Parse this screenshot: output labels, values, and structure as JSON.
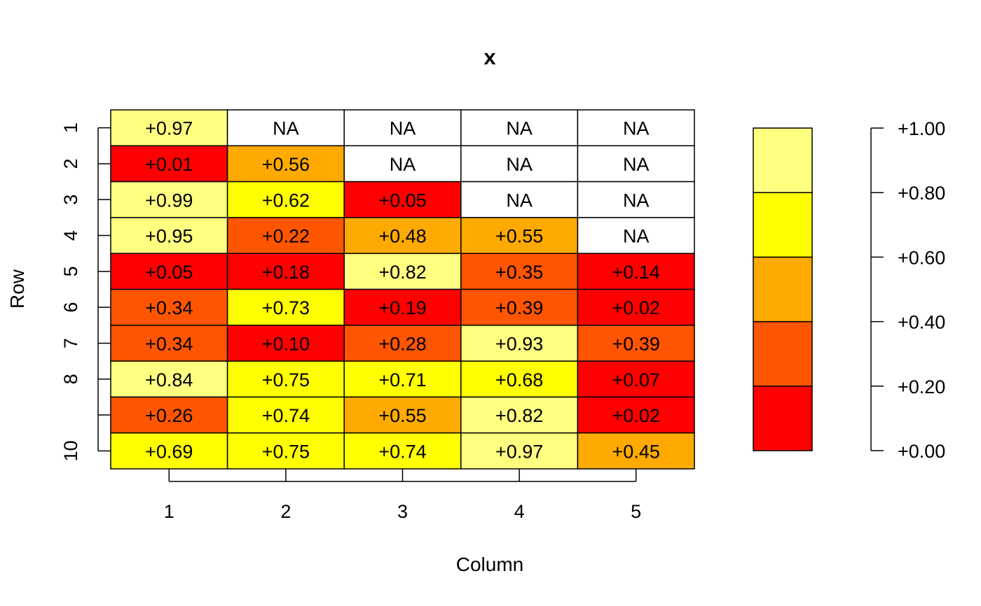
{
  "chart_data": {
    "type": "heatmap",
    "title": "x",
    "xlabel": "Column",
    "ylabel": "Row",
    "x_ticks": [
      "1",
      "2",
      "3",
      "4",
      "5"
    ],
    "y_ticks": [
      "1",
      "2",
      "3",
      "4",
      "5",
      "6",
      "7",
      "8",
      "",
      "10"
    ],
    "values": [
      [
        0.97,
        null,
        null,
        null,
        null
      ],
      [
        0.01,
        0.56,
        null,
        null,
        null
      ],
      [
        0.99,
        0.62,
        0.05,
        null,
        null
      ],
      [
        0.95,
        0.22,
        0.48,
        0.55,
        null
      ],
      [
        0.05,
        0.18,
        0.82,
        0.35,
        0.14
      ],
      [
        0.34,
        0.73,
        0.19,
        0.39,
        0.02
      ],
      [
        0.34,
        0.1,
        0.28,
        0.93,
        0.39
      ],
      [
        0.84,
        0.75,
        0.71,
        0.68,
        0.07
      ],
      [
        0.26,
        0.74,
        0.55,
        0.82,
        0.02
      ],
      [
        0.69,
        0.75,
        0.74,
        0.97,
        0.45
      ]
    ],
    "cell_labels": [
      [
        "+0.97",
        "NA",
        "NA",
        "NA",
        "NA"
      ],
      [
        "+0.01",
        "+0.56",
        "NA",
        "NA",
        "NA"
      ],
      [
        "+0.99",
        "+0.62",
        "+0.05",
        "NA",
        "NA"
      ],
      [
        "+0.95",
        "+0.22",
        "+0.48",
        "+0.55",
        "NA"
      ],
      [
        "+0.05",
        "+0.18",
        "+0.82",
        "+0.35",
        "+0.14"
      ],
      [
        "+0.34",
        "+0.73",
        "+0.19",
        "+0.39",
        "+0.02"
      ],
      [
        "+0.34",
        "+0.10",
        "+0.28",
        "+0.93",
        "+0.39"
      ],
      [
        "+0.84",
        "+0.75",
        "+0.71",
        "+0.68",
        "+0.07"
      ],
      [
        "+0.26",
        "+0.74",
        "+0.55",
        "+0.82",
        "+0.02"
      ],
      [
        "+0.69",
        "+0.75",
        "+0.74",
        "+0.97",
        "+0.45"
      ]
    ],
    "na_color": "#ffffff",
    "legend": {
      "breaks": [
        0.0,
        0.2,
        0.4,
        0.6,
        0.8,
        1.0
      ],
      "colors": [
        "#ff0000",
        "#ff5500",
        "#ffaa00",
        "#ffff00",
        "#ffff80"
      ],
      "tick_labels": [
        "+0.00",
        "+0.20",
        "+0.40",
        "+0.60",
        "+0.80",
        "+1.00"
      ]
    }
  }
}
